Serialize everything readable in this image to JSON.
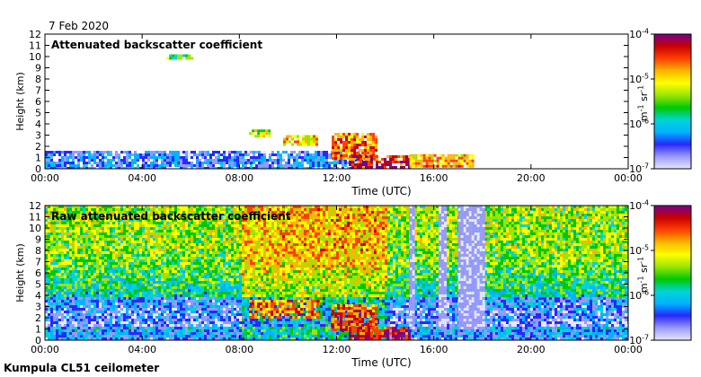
{
  "date_label": "7 Feb 2020",
  "footer": "Kumpula CL51 ceilometer",
  "colors": {
    "scale": [
      "#e6e6ff",
      "#9999ff",
      "#2828ff",
      "#00b4ff",
      "#00d4d4",
      "#00c800",
      "#9ae600",
      "#ffff00",
      "#ffb400",
      "#ff4000",
      "#c80000",
      "#78008c"
    ],
    "background": "#ffffff",
    "frame": "#000000"
  },
  "chart_data": [
    {
      "type": "heatmap",
      "title": "Attenuated backscatter coefficient",
      "xlabel": "Time (UTC)",
      "ylabel": "Height (km)",
      "x_ticks": [
        "00:00",
        "04:00",
        "08:00",
        "12:00",
        "16:00",
        "20:00",
        "00:00"
      ],
      "x_range_hours": [
        0,
        24
      ],
      "y_ticks": [
        "0",
        "1",
        "2",
        "3",
        "4",
        "5",
        "6",
        "7",
        "8",
        "9",
        "10",
        "11",
        "12"
      ],
      "ylim": [
        0,
        12
      ],
      "colorbar": {
        "tick_labels": [
          "10^-4",
          "10^-5",
          "10^-6",
          "10^-7"
        ],
        "exponents": [
          -4,
          -5,
          -6,
          -7
        ],
        "unit_label": "m^-1 sr^-1",
        "range_exponent": [
          -7,
          -4
        ]
      },
      "features": [
        {
          "name": "near-surface aerosol layer",
          "t_start": 0,
          "t_end": 13,
          "h_top": 1.6,
          "level": 0.22
        },
        {
          "name": "cloud band 1",
          "t_start": 8.4,
          "t_end": 9.2,
          "h_bottom": 2.8,
          "h_top": 3.5,
          "level": 0.62
        },
        {
          "name": "cloud band 2",
          "t_start": 9.8,
          "t_end": 11.2,
          "h_bottom": 2.2,
          "h_top": 3.0,
          "level": 0.7
        },
        {
          "name": "cloud mass",
          "t_start": 11.8,
          "t_end": 13.6,
          "h_bottom": 1.0,
          "h_top": 3.2,
          "level": 0.82
        },
        {
          "name": "descending cloud base",
          "t_start": 12.5,
          "t_end": 15.0,
          "h_bottom": 0.0,
          "h_top": 1.2,
          "level": 0.92
        },
        {
          "name": "low cloud",
          "t_start": 15.0,
          "t_end": 17.6,
          "h_bottom": 0.1,
          "h_top": 1.3,
          "level": 0.74
        },
        {
          "name": "elevated aerosol patch",
          "t_start": 5.0,
          "t_end": 6.0,
          "h_bottom": 9.8,
          "h_top": 10.2,
          "level": 0.5
        }
      ]
    },
    {
      "type": "heatmap",
      "title": "Raw attenuated backscatter coefficient",
      "xlabel": "Time (UTC)",
      "ylabel": "Height (km)",
      "x_ticks": [
        "00:00",
        "04:00",
        "08:00",
        "12:00",
        "16:00",
        "20:00",
        "00:00"
      ],
      "x_range_hours": [
        0,
        24
      ],
      "y_ticks": [
        "0",
        "1",
        "2",
        "3",
        "4",
        "5",
        "6",
        "7",
        "8",
        "9",
        "10",
        "11",
        "12"
      ],
      "ylim": [
        0,
        12
      ],
      "colorbar": {
        "tick_labels": [
          "10^-4",
          "10^-5",
          "10^-6",
          "10^-7"
        ],
        "exponents": [
          -4,
          -5,
          -6,
          -7
        ],
        "unit_label": "m^-1 sr^-1",
        "range_exponent": [
          -7,
          -4
        ]
      },
      "features": [
        {
          "name": "background noise field",
          "t_start": 0,
          "t_end": 24,
          "h_bottom": 0,
          "h_top": 12,
          "level": 0.45
        },
        {
          "name": "sloping cloud layer",
          "t_start": 8.4,
          "t_end": 11.2,
          "h_bottom": 2.0,
          "h_top": 3.6,
          "level": 0.8
        },
        {
          "name": "cloud mass",
          "t_start": 11.8,
          "t_end": 13.6,
          "h_bottom": 1.0,
          "h_top": 3.2,
          "level": 0.85
        },
        {
          "name": "descending cloud base",
          "t_start": 12.5,
          "t_end": 15.0,
          "h_bottom": 0.0,
          "h_top": 1.2,
          "level": 0.94
        },
        {
          "name": "attenuated column 1",
          "t_start": 15.0,
          "t_end": 15.2,
          "h_bottom": 1.0,
          "h_top": 12,
          "level": 0.05
        },
        {
          "name": "attenuated column 2",
          "t_start": 16.2,
          "t_end": 16.5,
          "h_bottom": 1.0,
          "h_top": 12,
          "level": 0.05
        },
        {
          "name": "attenuated column 3",
          "t_start": 17.0,
          "t_end": 18.1,
          "h_bottom": 1.0,
          "h_top": 12,
          "level": 0.05
        }
      ]
    }
  ]
}
